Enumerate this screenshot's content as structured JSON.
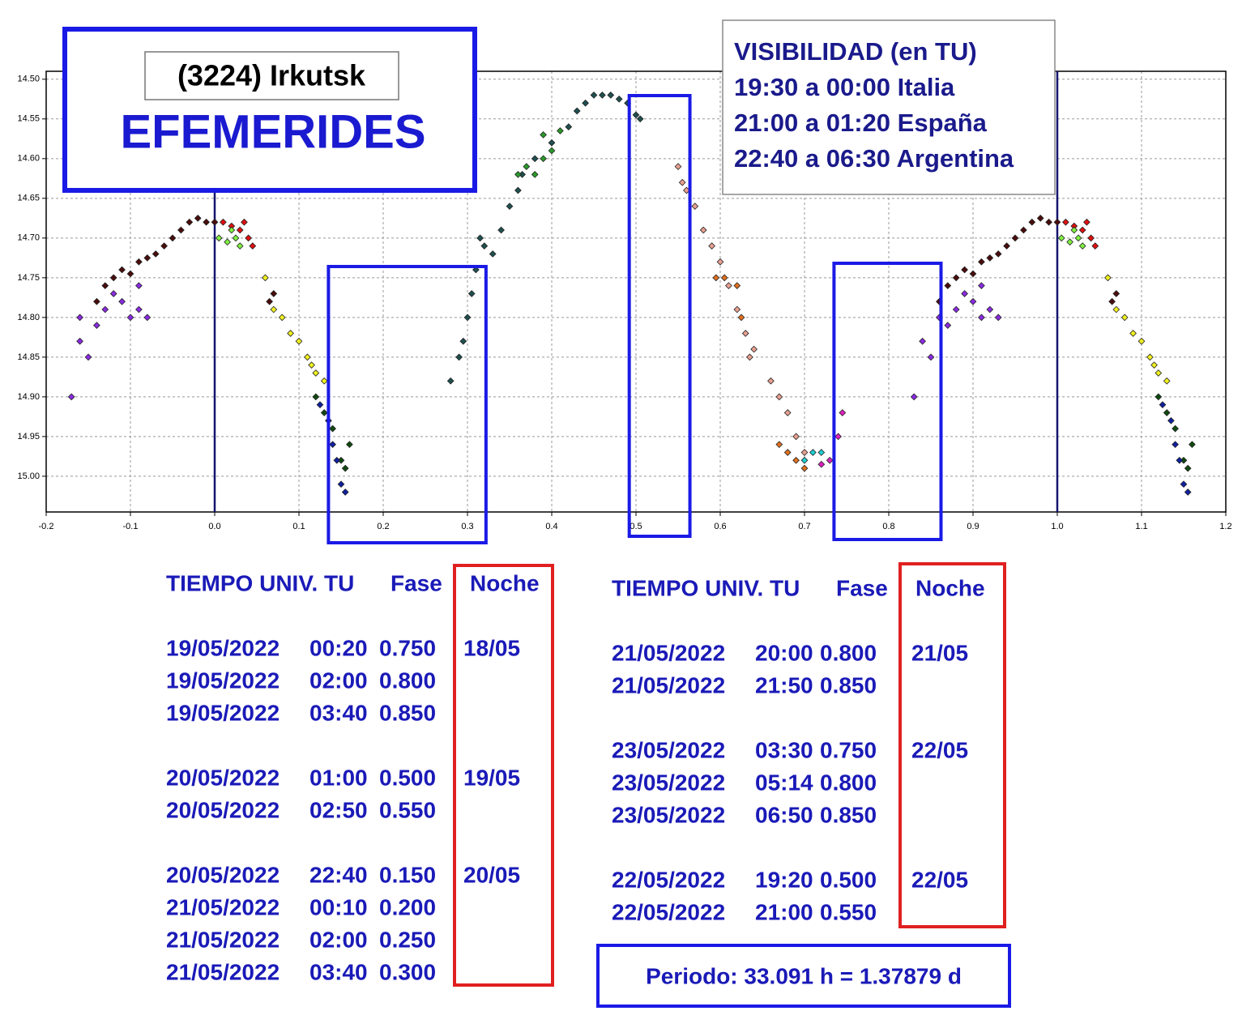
{
  "chart_data": {
    "type": "scatter",
    "xlim": [
      -0.2,
      1.2
    ],
    "ylim": [
      14.49,
      15.045
    ],
    "y_inverted": true,
    "grid": true,
    "xticks": [
      -0.2,
      -0.1,
      {
        "value": 0,
        "label": "0.0"
      },
      0.1,
      0.2,
      0.3,
      0.4,
      0.5,
      0.6,
      0.7,
      0.8,
      0.9,
      {
        "value": 1,
        "label": "1.0"
      },
      1.1,
      1.2
    ],
    "yticks": [
      {
        "value": 14.5,
        "label": "14.50"
      },
      {
        "value": 14.55,
        "label": "14.55"
      },
      {
        "value": 14.6,
        "label": "14.60"
      },
      {
        "value": 14.65,
        "label": "14.65"
      },
      {
        "value": 14.7,
        "label": "14.70"
      },
      {
        "value": 14.75,
        "label": "14.75"
      },
      {
        "value": 14.8,
        "label": "14.80"
      },
      {
        "value": 14.85,
        "label": "14.85"
      },
      {
        "value": 14.9,
        "label": "14.90"
      },
      {
        "value": 14.95,
        "label": "14.95"
      },
      {
        "value": 15,
        "label": "15.00"
      }
    ],
    "vlines": [
      0,
      1
    ],
    "windows": [
      [
        0.135,
        0.322
      ],
      [
        0.492,
        0.564
      ],
      [
        0.735,
        0.862
      ]
    ],
    "series": [
      {
        "color": "#8a2be2",
        "x": [
          -0.17,
          -0.16,
          -0.15,
          -0.16,
          -0.14,
          -0.13,
          -0.12,
          -0.11,
          -0.1,
          -0.09,
          -0.08,
          -0.09,
          0.83,
          0.84,
          0.85,
          0.86,
          0.87,
          0.88,
          0.89,
          0.9,
          0.91,
          0.92,
          0.93,
          0.91
        ],
        "y": [
          14.9,
          14.83,
          14.85,
          14.8,
          14.81,
          14.79,
          14.77,
          14.78,
          14.8,
          14.79,
          14.8,
          14.76,
          14.9,
          14.83,
          14.85,
          14.8,
          14.81,
          14.79,
          14.77,
          14.78,
          14.8,
          14.79,
          14.8,
          14.76
        ]
      },
      {
        "color": "#4a0c0c",
        "x": [
          -0.14,
          -0.13,
          -0.12,
          -0.11,
          -0.1,
          -0.09,
          -0.08,
          -0.07,
          -0.06,
          -0.05,
          -0.04,
          -0.03,
          -0.02,
          -0.01,
          0.0,
          0.07,
          0.065,
          0.86,
          0.87,
          0.88,
          0.89,
          0.9,
          0.91,
          0.92,
          0.93,
          0.94,
          0.95,
          0.96,
          0.97,
          0.98,
          0.99,
          1.0,
          1.07,
          1.065
        ],
        "y": [
          14.78,
          14.76,
          14.75,
          14.74,
          14.745,
          14.73,
          14.725,
          14.72,
          14.71,
          14.7,
          14.69,
          14.68,
          14.675,
          14.68,
          14.68,
          14.77,
          14.78,
          14.78,
          14.76,
          14.75,
          14.74,
          14.745,
          14.73,
          14.725,
          14.72,
          14.71,
          14.7,
          14.69,
          14.68,
          14.675,
          14.68,
          14.68,
          14.77,
          14.78
        ]
      },
      {
        "color": "#e01010",
        "x": [
          0.01,
          0.02,
          0.03,
          0.04,
          0.045,
          0.035,
          1.01,
          1.02,
          1.03,
          1.04,
          1.045,
          1.035
        ],
        "y": [
          14.68,
          14.685,
          14.69,
          14.7,
          14.71,
          14.68,
          14.68,
          14.685,
          14.69,
          14.7,
          14.71,
          14.68
        ]
      },
      {
        "color": "#80f040",
        "x": [
          0.005,
          0.015,
          0.025,
          0.03,
          0.02,
          1.005,
          1.015,
          1.025,
          1.03,
          1.02
        ],
        "y": [
          14.7,
          14.705,
          14.7,
          14.71,
          14.69,
          14.7,
          14.705,
          14.7,
          14.71,
          14.69
        ]
      },
      {
        "color": "#f0f020",
        "x": [
          0.06,
          0.07,
          0.08,
          0.09,
          0.1,
          0.11,
          0.12,
          0.13,
          0.115,
          1.06,
          1.07,
          1.08,
          1.09,
          1.1,
          1.11,
          1.12,
          1.13,
          1.115
        ],
        "y": [
          14.75,
          14.79,
          14.8,
          14.82,
          14.83,
          14.85,
          14.87,
          14.88,
          14.86,
          14.75,
          14.79,
          14.8,
          14.82,
          14.83,
          14.85,
          14.87,
          14.88,
          14.86
        ]
      },
      {
        "color": "#0f4a0f",
        "x": [
          0.12,
          0.13,
          0.14,
          0.15,
          0.16,
          0.155,
          1.12,
          1.13,
          1.14,
          1.15,
          1.16,
          1.155
        ],
        "y": [
          14.9,
          14.92,
          14.94,
          14.98,
          14.96,
          14.99,
          14.9,
          14.92,
          14.94,
          14.98,
          14.96,
          14.99
        ]
      },
      {
        "color": "#1020a0",
        "x": [
          0.125,
          0.135,
          0.14,
          0.145,
          0.15,
          0.155,
          1.125,
          1.135,
          1.14,
          1.145,
          1.15,
          1.155
        ],
        "y": [
          14.91,
          14.93,
          14.96,
          14.98,
          15.01,
          15.02,
          14.91,
          14.93,
          14.96,
          14.98,
          15.01,
          15.02
        ]
      },
      {
        "color": "#1f4f4f",
        "x": [
          0.28,
          0.29,
          0.295,
          0.3,
          0.305,
          0.31,
          0.315,
          0.32,
          0.33,
          0.34,
          0.35,
          0.36,
          0.365,
          0.38,
          0.4,
          0.42,
          0.43,
          0.44,
          0.45,
          0.46,
          0.47,
          0.48,
          0.49,
          0.5,
          0.505
        ],
        "y": [
          14.88,
          14.85,
          14.83,
          14.8,
          14.77,
          14.74,
          14.7,
          14.71,
          14.72,
          14.69,
          14.66,
          14.64,
          14.62,
          14.6,
          14.58,
          14.56,
          14.54,
          14.53,
          14.52,
          14.52,
          14.52,
          14.525,
          14.53,
          14.545,
          14.55
        ]
      },
      {
        "color": "#2a9a2a",
        "x": [
          0.36,
          0.37,
          0.38,
          0.39,
          0.4,
          0.39,
          0.41
        ],
        "y": [
          14.62,
          14.61,
          14.62,
          14.6,
          14.59,
          14.57,
          14.565
        ]
      },
      {
        "color": "#e8a090",
        "x": [
          0.55,
          0.555,
          0.56,
          0.57,
          0.58,
          0.59,
          0.6,
          0.61,
          0.62,
          0.63,
          0.635,
          0.64,
          0.66,
          0.67,
          0.68,
          0.69,
          0.7
        ],
        "y": [
          14.61,
          14.63,
          14.64,
          14.66,
          14.69,
          14.71,
          14.73,
          14.76,
          14.79,
          14.82,
          14.85,
          14.84,
          14.88,
          14.9,
          14.92,
          14.95,
          14.97
        ]
      },
      {
        "color": "#e07020",
        "x": [
          0.595,
          0.605,
          0.62,
          0.625,
          0.67,
          0.68,
          0.69,
          0.7
        ],
        "y": [
          14.75,
          14.75,
          14.76,
          14.8,
          14.96,
          14.97,
          14.98,
          14.99
        ]
      },
      {
        "color": "#20d0d0",
        "x": [
          0.7,
          0.71,
          0.72
        ],
        "y": [
          14.98,
          14.97,
          14.97
        ]
      },
      {
        "color": "#e020c0",
        "x": [
          0.73,
          0.74,
          0.745,
          0.72
        ],
        "y": [
          14.98,
          14.95,
          14.92,
          14.985
        ]
      }
    ]
  },
  "title_box": {
    "subtitle": "(3224) Irkutsk",
    "title": "EFEMERIDES"
  },
  "visibility": [
    "VISIBILIDAD (en TU)",
    "19:30 a 00:00 Italia",
    "21:00 a 01:20 España",
    "22:40 a 06:30 Argentina"
  ],
  "tables": [
    {
      "header": [
        "TIEMPO UNIV. TU",
        "Fase",
        "Noche"
      ],
      "groups": [
        {
          "noche": "18/05",
          "rows": [
            [
              "19/05/2022",
              "00:20",
              "0.750"
            ],
            [
              "19/05/2022",
              "02:00",
              "0.800"
            ],
            [
              "19/05/2022",
              "03:40",
              "0.850"
            ]
          ]
        },
        {
          "noche": "19/05",
          "rows": [
            [
              "20/05/2022",
              "01:00",
              "0.500"
            ],
            [
              "20/05/2022",
              "02:50",
              "0.550"
            ]
          ]
        },
        {
          "noche": "20/05",
          "rows": [
            [
              "20/05/2022",
              "22:40",
              "0.150"
            ],
            [
              "21/05/2022",
              "00:10",
              "0.200"
            ],
            [
              "21/05/2022",
              "02:00",
              "0.250"
            ],
            [
              "21/05/2022",
              "03:40",
              "0.300"
            ]
          ]
        }
      ]
    },
    {
      "header": [
        "TIEMPO UNIV. TU",
        "Fase",
        "Noche"
      ],
      "groups": [
        {
          "noche": "21/05",
          "rows": [
            [
              "21/05/2022",
              "20:00",
              "0.800"
            ],
            [
              "21/05/2022",
              "21:50",
              "0.850"
            ]
          ]
        },
        {
          "noche": "22/05",
          "rows": [
            [
              "23/05/2022",
              "03:30",
              "0.750"
            ],
            [
              "23/05/2022",
              "05:14",
              "0.800"
            ],
            [
              "23/05/2022",
              "06:50",
              "0.850"
            ]
          ]
        },
        {
          "noche": "22/05",
          "rows": [
            [
              "22/05/2022",
              "19:20",
              "0.500"
            ],
            [
              "22/05/2022",
              "21:00",
              "0.550"
            ]
          ]
        }
      ]
    }
  ],
  "period": "Periodo: 33.091 h = 1.37879 d"
}
